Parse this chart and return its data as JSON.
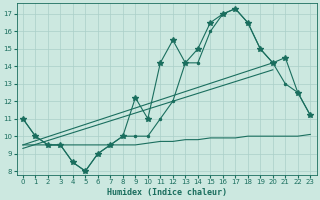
{
  "xlabel": "Humidex (Indice chaleur)",
  "line_color": "#1a6e5e",
  "bg_color": "#cce8e0",
  "grid_color": "#aacfc8",
  "ylim": [
    7.8,
    17.6
  ],
  "yticks": [
    8,
    9,
    10,
    11,
    12,
    13,
    14,
    15,
    16,
    17
  ],
  "xticks": [
    0,
    1,
    2,
    3,
    4,
    5,
    6,
    7,
    8,
    9,
    10,
    11,
    12,
    13,
    14,
    15,
    16,
    17,
    18,
    19,
    20,
    21,
    22,
    23
  ],
  "x": [
    0,
    1,
    2,
    3,
    4,
    5,
    6,
    7,
    8,
    9,
    10,
    11,
    12,
    13,
    14,
    15,
    16,
    17,
    18,
    19,
    20,
    21,
    22,
    23
  ],
  "y_main": [
    11.0,
    10.0,
    9.5,
    9.5,
    8.5,
    8.0,
    9.0,
    9.5,
    10.0,
    12.2,
    11.0,
    14.2,
    15.5,
    14.2,
    15.0,
    16.5,
    17.0,
    17.3,
    16.5,
    15.0,
    14.2,
    14.5,
    12.5,
    11.2
  ],
  "y_avg": [
    11.0,
    10.0,
    9.5,
    9.5,
    8.5,
    8.0,
    9.0,
    9.5,
    10.0,
    10.0,
    10.0,
    11.0,
    12.0,
    14.2,
    14.2,
    16.0,
    17.0,
    17.3,
    16.5,
    15.0,
    14.2,
    13.0,
    12.5,
    11.2
  ],
  "y_trend1_start": 9.5,
  "y_trend1_end": 14.2,
  "y_trend2_start": 9.3,
  "y_trend2_end": 13.8,
  "y_flat": [
    9.5,
    9.5,
    9.5,
    9.5,
    9.5,
    9.5,
    9.5,
    9.5,
    9.5,
    9.5,
    9.6,
    9.7,
    9.7,
    9.8,
    9.8,
    9.9,
    9.9,
    9.9,
    10.0,
    10.0,
    10.0,
    10.0,
    10.0,
    10.1
  ]
}
